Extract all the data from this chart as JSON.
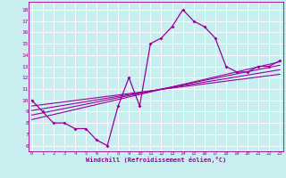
{
  "xlabel": "Windchill (Refroidissement éolien,°C)",
  "bg_color": "#c8eef0",
  "line_color": "#990099",
  "grid_color": "#ffffff",
  "x_data": [
    0,
    1,
    2,
    3,
    4,
    5,
    6,
    7,
    8,
    9,
    10,
    11,
    12,
    13,
    14,
    15,
    16,
    17,
    18,
    19,
    20,
    21,
    22,
    23
  ],
  "y_data": [
    10.0,
    9.0,
    8.0,
    8.0,
    7.5,
    7.5,
    6.5,
    6.0,
    9.5,
    12.0,
    9.5,
    15.0,
    15.5,
    16.5,
    18.0,
    17.0,
    16.5,
    15.5,
    13.0,
    12.5,
    12.5,
    13.0,
    13.0,
    13.5
  ],
  "reg_lines": [
    {
      "x0": 0,
      "y0": 8.3,
      "x1": 23,
      "y1": 13.4
    },
    {
      "x0": 0,
      "y0": 8.7,
      "x1": 23,
      "y1": 13.1
    },
    {
      "x0": 0,
      "y0": 9.1,
      "x1": 23,
      "y1": 12.7
    },
    {
      "x0": 0,
      "y0": 9.5,
      "x1": 23,
      "y1": 12.3
    }
  ],
  "xlim": [
    -0.3,
    23.3
  ],
  "ylim": [
    5.5,
    18.7
  ],
  "yticks": [
    6,
    7,
    8,
    9,
    10,
    11,
    12,
    13,
    14,
    15,
    16,
    17,
    18
  ],
  "xticks": [
    0,
    1,
    2,
    3,
    4,
    5,
    6,
    7,
    8,
    9,
    10,
    11,
    12,
    13,
    14,
    15,
    16,
    17,
    18,
    19,
    20,
    21,
    22,
    23
  ]
}
